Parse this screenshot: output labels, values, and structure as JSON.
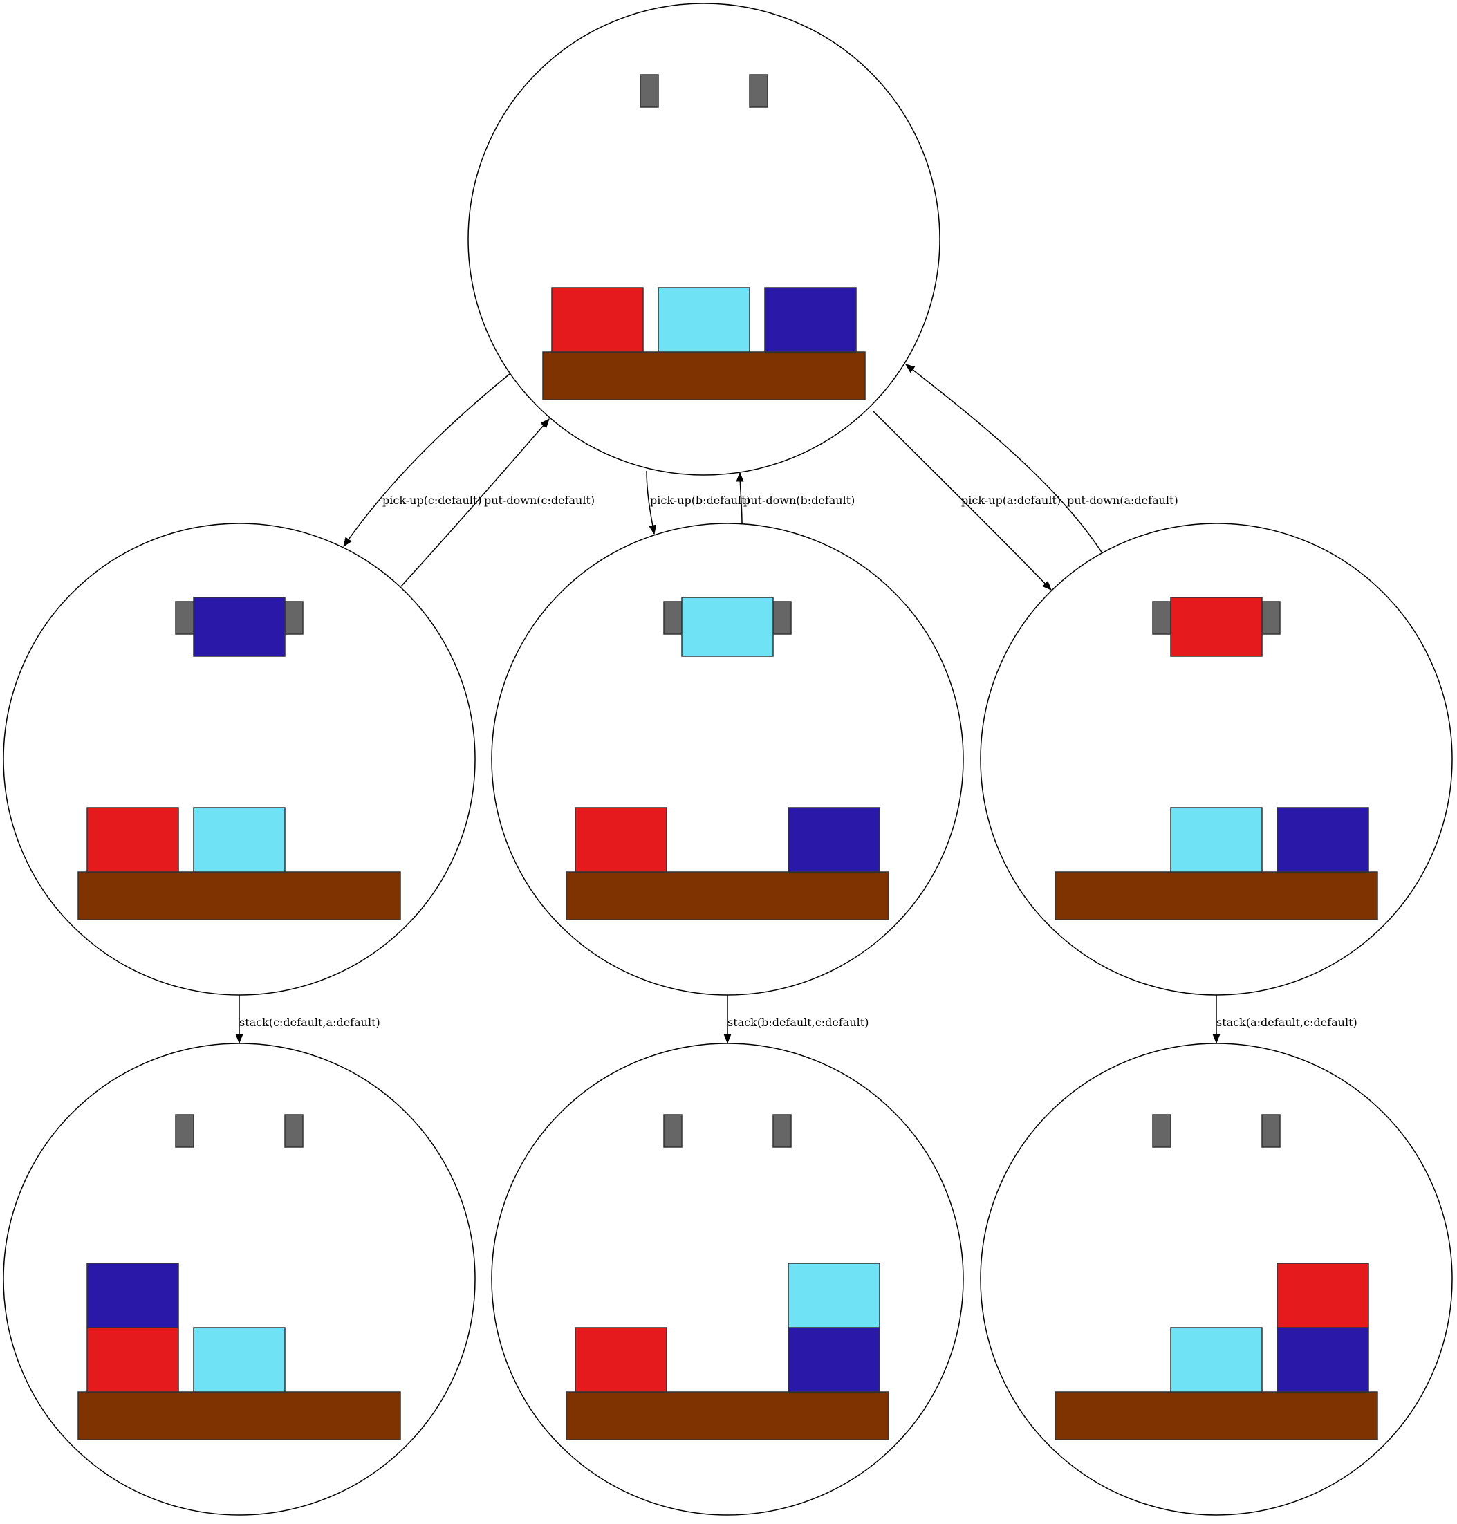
{
  "colors": {
    "block_a": "#e41a1c",
    "block_b": "#6fe3f5",
    "block_c": "#2a19a9",
    "table": "#7f3300",
    "gripper": "#666666",
    "outline": "#333333",
    "node_stroke": "#000000"
  },
  "nodes": [
    {
      "id": "s0",
      "stacks": [
        [
          "a"
        ],
        [
          "b"
        ],
        [
          "c"
        ]
      ],
      "holding": null
    },
    {
      "id": "s1",
      "stacks": [
        [
          "a"
        ],
        [
          "b"
        ]
      ],
      "holding": "c"
    },
    {
      "id": "s2",
      "stacks": [
        [
          "a"
        ],
        [],
        [
          "c"
        ]
      ],
      "holding": "b"
    },
    {
      "id": "s3",
      "stacks": [
        [],
        [
          "b"
        ],
        [
          "c"
        ]
      ],
      "holding": "a"
    },
    {
      "id": "s4",
      "stacks": [
        [
          "a",
          "c"
        ],
        [
          "b"
        ]
      ],
      "holding": null
    },
    {
      "id": "s5",
      "stacks": [
        [
          "a"
        ],
        [],
        [
          "c",
          "b"
        ]
      ],
      "holding": null
    },
    {
      "id": "s6",
      "stacks": [
        [],
        [
          "b"
        ],
        [
          "c",
          "a"
        ]
      ],
      "holding": null
    }
  ],
  "edges": [
    {
      "id": "e1",
      "from": "s0",
      "to": "s1",
      "label": "pick-up(c:default)"
    },
    {
      "id": "e2",
      "from": "s1",
      "to": "s0",
      "label": "put-down(c:default)"
    },
    {
      "id": "e3",
      "from": "s0",
      "to": "s2",
      "label": "pick-up(b:default)"
    },
    {
      "id": "e4",
      "from": "s2",
      "to": "s0",
      "label": "put-down(b:default)"
    },
    {
      "id": "e5",
      "from": "s0",
      "to": "s3",
      "label": "pick-up(a:default)"
    },
    {
      "id": "e6",
      "from": "s3",
      "to": "s0",
      "label": "put-down(a:default)"
    },
    {
      "id": "e7",
      "from": "s1",
      "to": "s4",
      "label": "stack(c:default,a:default)"
    },
    {
      "id": "e8",
      "from": "s2",
      "to": "s5",
      "label": "stack(b:default,c:default)"
    },
    {
      "id": "e9",
      "from": "s3",
      "to": "s6",
      "label": "stack(a:default,c:default)"
    }
  ]
}
